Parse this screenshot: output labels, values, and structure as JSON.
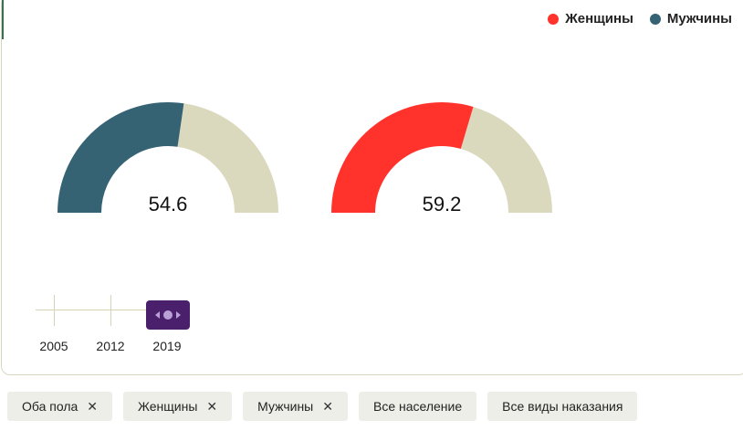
{
  "legend": {
    "items": [
      {
        "label": "Женщины",
        "color": "#ff332c"
      },
      {
        "label": "Мужчины",
        "color": "#356373"
      }
    ]
  },
  "chart_data": [
    {
      "type": "gauge",
      "value": 54.6,
      "value_label": "54.6",
      "range": [
        0,
        100
      ],
      "color": "#356373",
      "track_color": "#dbd9bd"
    },
    {
      "type": "gauge",
      "value": 59.2,
      "value_label": "59.2",
      "range": [
        0,
        100
      ],
      "color": "#ff332c",
      "track_color": "#dbd9bd"
    }
  ],
  "timeline": {
    "years": [
      "2005",
      "2012",
      "2019"
    ],
    "selected": "2019"
  },
  "filters": [
    {
      "label": "Оба пола",
      "closable": true
    },
    {
      "label": "Женщины",
      "closable": true
    },
    {
      "label": "Мужчины",
      "closable": true
    },
    {
      "label": "Все население",
      "closable": false
    },
    {
      "label": "Все виды наказания",
      "closable": false
    }
  ]
}
